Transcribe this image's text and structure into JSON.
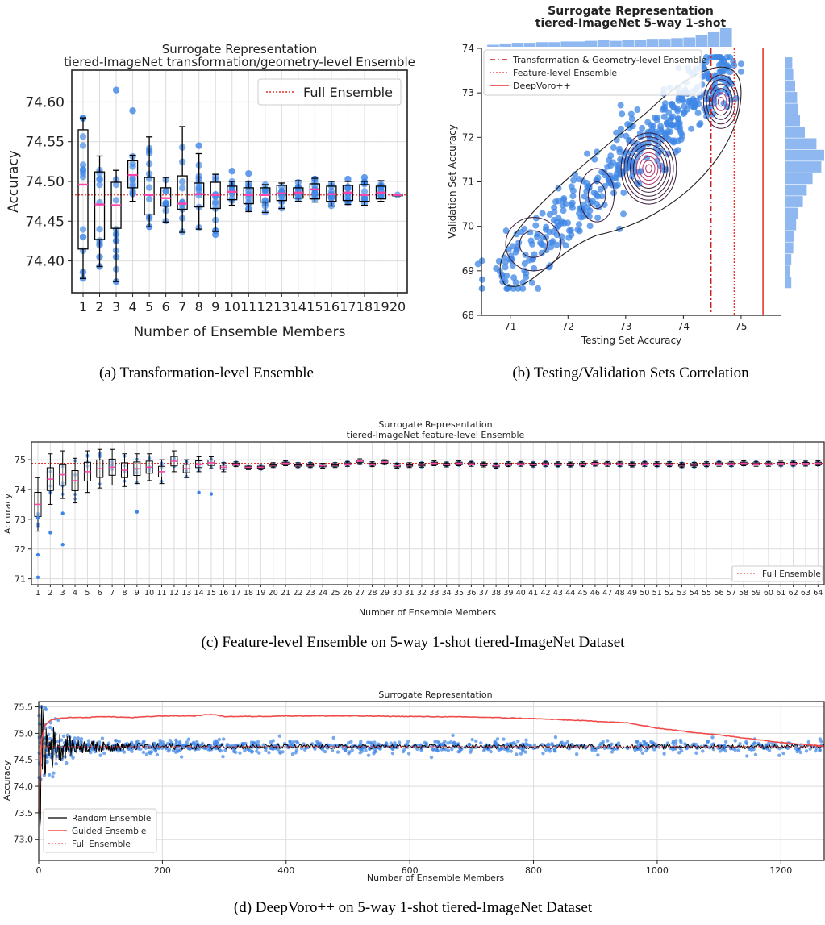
{
  "captions": {
    "a": "(a) Transformation-level Ensemble",
    "b": "(b) Testing/Validation Sets Correlation",
    "c": "(c) Feature-level Ensemble on 5-way 1-shot tiered-ImageNet Dataset",
    "d": "(d) DeepVoro++ on 5-way 1-shot tiered-ImageNet Dataset"
  },
  "colors": {
    "point": "#3d85e6",
    "hist": "#8fb8f0",
    "median": "#ff44aa",
    "full": "#e8322a",
    "guided": "#f04a4a",
    "random": "#000000"
  },
  "chart_data": [
    {
      "id": "a",
      "type": "box",
      "title": "Surrogate Representation",
      "subtitle": "tiered-ImageNet transformation/geometry-level Ensemble",
      "xlabel": "Number of Ensemble Members",
      "ylabel": "Accuracy",
      "ylim": [
        74.36,
        74.64
      ],
      "yticks": [
        "74.40",
        "74.45",
        "74.50",
        "74.55",
        "74.60"
      ],
      "grid": true,
      "legend": {
        "position": "top-right",
        "entries": [
          "Full Ensemble"
        ]
      },
      "full_ensemble": 74.483,
      "categories": [
        "1",
        "2",
        "3",
        "4",
        "5",
        "6",
        "7",
        "8",
        "9",
        "10",
        "11",
        "12",
        "13",
        "14",
        "15",
        "16",
        "17",
        "18",
        "19",
        "20"
      ],
      "boxes": [
        {
          "q1": 74.415,
          "med": 74.496,
          "q3": 74.565,
          "lo": 74.378,
          "hi": 74.58
        },
        {
          "q1": 74.427,
          "med": 74.471,
          "q3": 74.512,
          "lo": 74.393,
          "hi": 74.532
        },
        {
          "q1": 74.441,
          "med": 74.47,
          "q3": 74.499,
          "lo": 74.374,
          "hi": 74.514
        },
        {
          "q1": 74.492,
          "med": 74.508,
          "q3": 74.526,
          "lo": 74.475,
          "hi": 74.533
        },
        {
          "q1": 74.458,
          "med": 74.483,
          "q3": 74.505,
          "lo": 74.443,
          "hi": 74.556
        },
        {
          "q1": 74.469,
          "med": 74.479,
          "q3": 74.492,
          "lo": 74.449,
          "hi": 74.505
        },
        {
          "q1": 74.465,
          "med": 74.472,
          "q3": 74.507,
          "lo": 74.436,
          "hi": 74.569
        },
        {
          "q1": 74.468,
          "med": 74.484,
          "q3": 74.498,
          "lo": 74.44,
          "hi": 74.535
        },
        {
          "q1": 74.466,
          "med": 74.483,
          "q3": 74.499,
          "lo": 74.437,
          "hi": 74.509
        },
        {
          "q1": 74.477,
          "med": 74.487,
          "q3": 74.494,
          "lo": 74.47,
          "hi": 74.5
        },
        {
          "q1": 74.472,
          "med": 74.483,
          "q3": 74.492,
          "lo": 74.462,
          "hi": 74.5
        },
        {
          "q1": 74.474,
          "med": 74.483,
          "q3": 74.492,
          "lo": 74.461,
          "hi": 74.496
        },
        {
          "q1": 74.476,
          "med": 74.485,
          "q3": 74.495,
          "lo": 74.466,
          "hi": 74.498
        },
        {
          "q1": 74.479,
          "med": 74.486,
          "q3": 74.492,
          "lo": 74.475,
          "hi": 74.501
        },
        {
          "q1": 74.478,
          "med": 74.49,
          "q3": 74.497,
          "lo": 74.474,
          "hi": 74.504
        },
        {
          "q1": 74.475,
          "med": 74.484,
          "q3": 74.494,
          "lo": 74.469,
          "hi": 74.5
        },
        {
          "q1": 74.476,
          "med": 74.486,
          "q3": 74.495,
          "lo": 74.471,
          "hi": 74.5
        },
        {
          "q1": 74.475,
          "med": 74.483,
          "q3": 74.496,
          "lo": 74.47,
          "hi": 74.5
        },
        {
          "q1": 74.478,
          "med": 74.486,
          "q3": 74.494,
          "lo": 74.475,
          "hi": 74.501
        },
        {
          "q1": 74.483,
          "med": 74.483,
          "q3": 74.483,
          "lo": 74.483,
          "hi": 74.483
        }
      ],
      "outliers": [
        [
          1,
          74.58
        ],
        [
          1,
          74.378
        ],
        [
          1,
          74.386
        ],
        [
          1,
          74.43
        ],
        [
          2,
          74.393
        ],
        [
          2,
          74.405
        ],
        [
          3,
          74.615
        ],
        [
          3,
          74.374
        ],
        [
          3,
          74.405
        ],
        [
          4,
          74.589
        ],
        [
          5,
          74.443
        ],
        [
          8,
          74.545
        ],
        [
          9,
          74.433
        ],
        [
          9,
          74.438
        ],
        [
          10,
          74.513
        ],
        [
          11,
          74.51
        ],
        [
          15,
          74.503
        ],
        [
          17,
          74.503
        ],
        [
          18,
          74.505
        ]
      ]
    },
    {
      "id": "b",
      "type": "scatter",
      "title": "Surrogate Representation",
      "subtitle": "tiered-ImageNet 5-way 1-shot",
      "xlabel": "Testing Set Accuracy",
      "ylabel": "Validation Set Accuracy",
      "xlim": [
        70.5,
        75.7
      ],
      "ylim": [
        68.0,
        74.0
      ],
      "xticks": [
        71,
        72,
        73,
        74,
        75
      ],
      "yticks": [
        68,
        69,
        70,
        71,
        72,
        73,
        74
      ],
      "legend": {
        "position": "top-left",
        "entries": [
          "Transformation & Geometry-level Ensemble",
          "Feature-level Ensemble",
          "DeepVoro++"
        ]
      },
      "vlines": {
        "transformation_geometry": 74.48,
        "feature": 74.88,
        "deepvoro": 75.38
      },
      "density_clusters": [
        [
          71.4,
          69.6
        ],
        [
          72.5,
          70.7
        ],
        [
          73.4,
          71.3
        ],
        [
          74.65,
          72.8
        ]
      ],
      "y_histogram_range": [
        68.6,
        73.8
      ],
      "x_histogram_counts": [
        3,
        5,
        6,
        6,
        7,
        7,
        8,
        8,
        9,
        10,
        9,
        10,
        11,
        12,
        12,
        13,
        14,
        18,
        22,
        28
      ],
      "y_histogram_counts": [
        6,
        5,
        6,
        8,
        9,
        11,
        13,
        18,
        22,
        28,
        37,
        40,
        32,
        20,
        15,
        13,
        12,
        10,
        8,
        7
      ]
    },
    {
      "id": "c",
      "type": "box",
      "title": "Surrogate Representation",
      "subtitle": "tiered-ImageNet feature-level Ensemble",
      "xlabel": "Number of Ensemble Members",
      "ylabel": "Accuracy",
      "ylim": [
        70.8,
        75.6
      ],
      "yticks": [
        71,
        72,
        73,
        74,
        75
      ],
      "grid": true,
      "legend": {
        "position": "bottom-right",
        "entries": [
          "Full Ensemble"
        ]
      },
      "full_ensemble": 74.88,
      "categories": [
        "1",
        "2",
        "3",
        "4",
        "5",
        "6",
        "7",
        "8",
        "9",
        "10",
        "11",
        "12",
        "13",
        "14",
        "15",
        "16",
        "17",
        "18",
        "19",
        "20",
        "21",
        "22",
        "23",
        "24",
        "25",
        "26",
        "27",
        "28",
        "29",
        "30",
        "31",
        "32",
        "33",
        "34",
        "35",
        "36",
        "37",
        "38",
        "39",
        "40",
        "41",
        "42",
        "43",
        "44",
        "45",
        "46",
        "47",
        "48",
        "49",
        "50",
        "51",
        "52",
        "53",
        "54",
        "55",
        "56",
        "57",
        "58",
        "59",
        "60",
        "61",
        "62",
        "63",
        "64"
      ],
      "medians": [
        73.5,
        74.35,
        74.5,
        74.3,
        74.6,
        74.7,
        74.75,
        74.65,
        74.7,
        74.75,
        74.6,
        74.95,
        74.7,
        74.85,
        74.9,
        74.75,
        74.85,
        74.75,
        74.75,
        74.82,
        74.88,
        74.82,
        74.82,
        74.8,
        74.82,
        74.86,
        74.95,
        74.85,
        74.92,
        74.8,
        74.82,
        74.83,
        74.88,
        74.84,
        74.88,
        74.86,
        74.84,
        74.8,
        74.85,
        74.86,
        74.84,
        74.86,
        74.85,
        74.84,
        74.85,
        74.87,
        74.86,
        74.86,
        74.84,
        74.86,
        74.85,
        74.85,
        74.82,
        74.83,
        74.85,
        74.86,
        74.86,
        74.88,
        74.86,
        74.86,
        74.87,
        74.87,
        74.87,
        74.88
      ],
      "outliers": [
        [
          1,
          71.05
        ],
        [
          1,
          71.8
        ],
        [
          1,
          73.05
        ],
        [
          2,
          72.55
        ],
        [
          3,
          72.15
        ],
        [
          3,
          73.2
        ],
        [
          9,
          73.25
        ],
        [
          14,
          73.9
        ],
        [
          15,
          73.85
        ]
      ]
    },
    {
      "id": "d",
      "type": "line",
      "title": "Surrogate Representation",
      "xlabel": "Number of Ensemble Members",
      "ylabel": "Accuracy",
      "xlim": [
        0,
        1270
      ],
      "ylim": [
        72.6,
        75.6
      ],
      "xticks": [
        0,
        200,
        400,
        600,
        800,
        1000,
        1200
      ],
      "yticks": [
        "73.0",
        "73.5",
        "74.0",
        "74.5",
        "75.0",
        "75.5"
      ],
      "grid": true,
      "legend": {
        "position": "bottom-left",
        "entries": [
          "Random Ensemble",
          "Guided Ensemble",
          "Full Ensemble"
        ]
      },
      "full_ensemble": 74.75,
      "guided": {
        "x": [
          0,
          5,
          10,
          20,
          30,
          50,
          80,
          100,
          150,
          200,
          250,
          280,
          300,
          350,
          400,
          500,
          600,
          700,
          800,
          900,
          950,
          1000,
          1050,
          1100,
          1150,
          1200,
          1250,
          1270
        ],
        "y": [
          73.5,
          74.9,
          75.15,
          75.25,
          75.28,
          75.3,
          75.3,
          75.32,
          75.3,
          75.33,
          75.33,
          75.36,
          75.32,
          75.32,
          75.33,
          75.33,
          75.32,
          75.31,
          75.28,
          75.23,
          75.2,
          75.1,
          75.03,
          74.97,
          74.9,
          74.83,
          74.78,
          74.76
        ]
      },
      "random_mean": 74.75,
      "random_start": 73.3
    }
  ]
}
